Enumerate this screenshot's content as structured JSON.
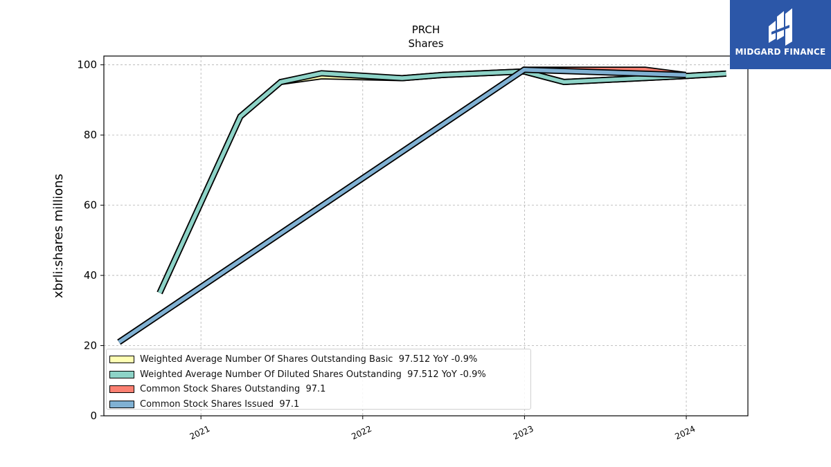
{
  "brand": {
    "name": "MIDGARD FINANCE",
    "logo_color": "#2c57a8",
    "logo_icon": "midgard-monogram-icon"
  },
  "chart_data": {
    "type": "line",
    "title": "PRCH",
    "subtitle": "Shares",
    "ylabel": "xbrli:shares millions",
    "xlabel": "",
    "ylim": [
      0,
      102.5
    ],
    "xlim": [
      "2020-05-27",
      "2024-05-19"
    ],
    "yticks": [
      0,
      20,
      40,
      60,
      80,
      100
    ],
    "xticks": [
      "2021",
      "2022",
      "2023",
      "2024"
    ],
    "grid": true,
    "legend_position": "lower-left",
    "series": [
      {
        "name": "Weighted Average Number Of Shares Outstanding Basic",
        "summary": "97.512 YoY -0.9%",
        "color": "#ffffb3",
        "x": [
          "2020-09-30",
          "2021-03-31",
          "2021-06-30",
          "2021-09-30",
          "2022-03-31",
          "2022-06-30",
          "2022-12-31",
          "2023-03-31",
          "2023-12-31",
          "2024-03-31"
        ],
        "y": [
          35.0,
          85.3,
          95.1,
          96.7,
          96.2,
          97.1,
          98.1,
          95.1,
          96.8,
          97.5
        ]
      },
      {
        "name": "Weighted Average Number Of Diluted Shares Outstanding",
        "summary": "97.512 YoY -0.9%",
        "color": "#8dd3c7",
        "x": [
          "2020-09-30",
          "2021-03-31",
          "2021-06-30",
          "2021-09-30",
          "2022-03-31",
          "2022-06-30",
          "2022-12-31",
          "2023-03-31",
          "2023-12-31",
          "2024-03-31"
        ],
        "y": [
          35.0,
          85.3,
          95.1,
          97.6,
          96.2,
          97.1,
          98.1,
          95.1,
          96.8,
          97.5
        ]
      },
      {
        "name": "Common Stock Shares Outstanding",
        "summary": "97.1",
        "color": "#fb8072",
        "x": [
          "2020-06-30",
          "2022-12-31",
          "2023-09-30",
          "2023-12-31"
        ],
        "y": [
          21.0,
          98.6,
          98.6,
          97.1
        ]
      },
      {
        "name": "Common Stock Shares Issued",
        "summary": "97.1",
        "color": "#80b1d3",
        "x": [
          "2020-06-30",
          "2022-12-31",
          "2023-12-31"
        ],
        "y": [
          21.0,
          98.6,
          97.1
        ]
      }
    ]
  }
}
